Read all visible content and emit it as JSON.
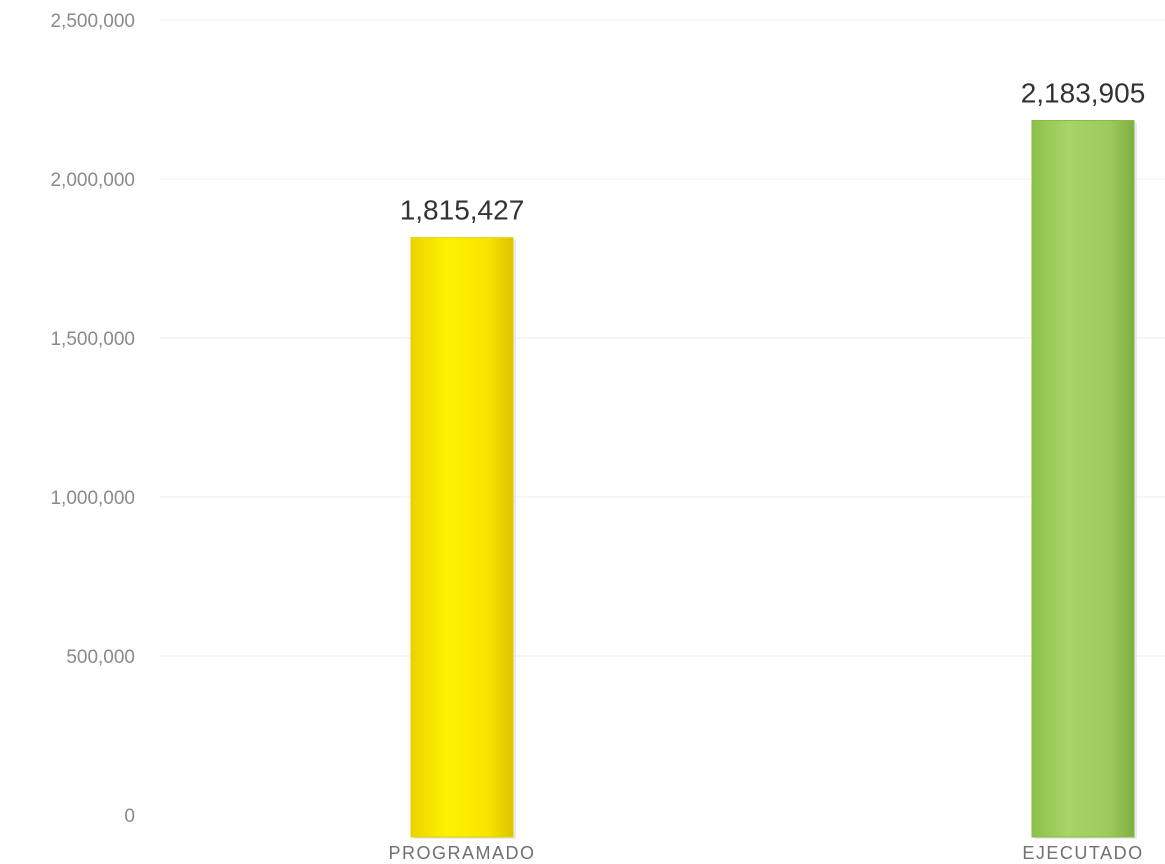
{
  "chart_data": {
    "type": "bar",
    "title": "",
    "xlabel": "",
    "ylabel": "",
    "categories": [
      "PROGRAMADO",
      "EJECUTADO"
    ],
    "values": [
      1815427,
      2183905
    ],
    "value_labels": [
      "1,815,427",
      "2,183,905"
    ],
    "ylim": [
      0,
      2500000
    ],
    "y_ticks": [
      0,
      500000,
      1000000,
      1500000,
      2000000,
      2500000
    ],
    "y_tick_labels": [
      "0",
      "500,000",
      "1,000,000",
      "1,500,000",
      "2,000,000",
      "2,500,000"
    ],
    "grid": true,
    "legend": "none",
    "colors": [
      "#f5e400",
      "#9ccc5a"
    ]
  }
}
